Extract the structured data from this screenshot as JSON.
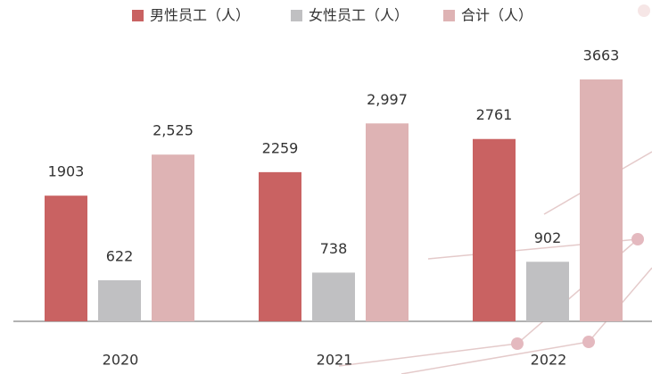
{
  "chart_data": {
    "type": "bar",
    "categories": [
      "2020",
      "2021",
      "2022"
    ],
    "series": [
      {
        "name": "男性员工（人）",
        "color": "#c96262",
        "values": [
          1903,
          2259,
          2761
        ]
      },
      {
        "name": "女性员工（人）",
        "color": "#c0c0c2",
        "values": [
          622,
          738,
          902
        ]
      },
      {
        "name": "合计（人）",
        "color": "#deb3b4",
        "values": [
          2525,
          2997,
          3663
        ],
        "value_labels": [
          "2,525",
          "2,997",
          "3663"
        ]
      }
    ]
  }
}
